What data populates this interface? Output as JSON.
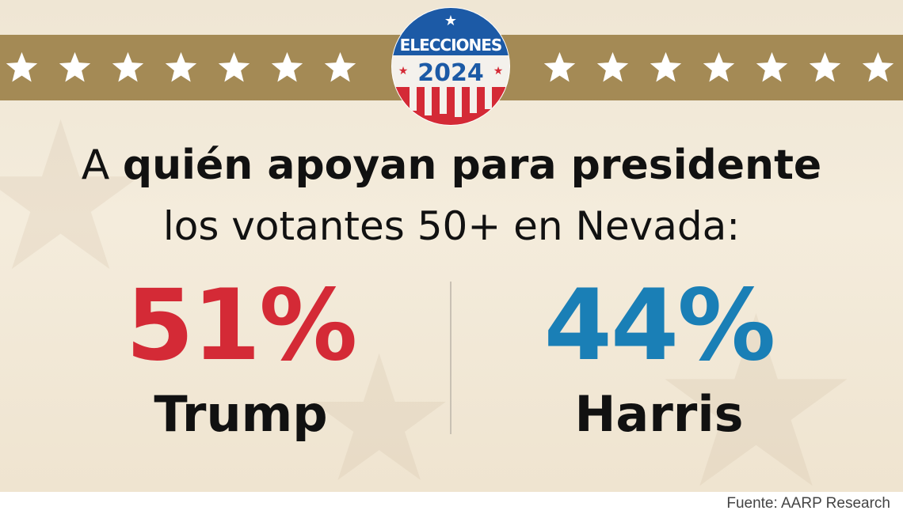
{
  "badge": {
    "title": "ELECCIONES",
    "year": "2024"
  },
  "headline": {
    "prefix": "A ",
    "bold": "quién apoyan para presidente",
    "line2": "los votantes 50+ en Nevada:"
  },
  "results": [
    {
      "percent": "51%",
      "name": "Trump",
      "color": "#d42a36"
    },
    {
      "percent": "44%",
      "name": "Harris",
      "color": "#1a7fb6"
    }
  ],
  "source": "Fuente: AARP Research",
  "colors": {
    "banner": "#a48a55",
    "background": "#f1e8d6",
    "badge_blue": "#1c5aa6",
    "badge_red": "#d42a36",
    "star": "#ffffff"
  },
  "icons": {
    "banner_star": "star-icon",
    "badge": "elecciones-2024-badge"
  }
}
